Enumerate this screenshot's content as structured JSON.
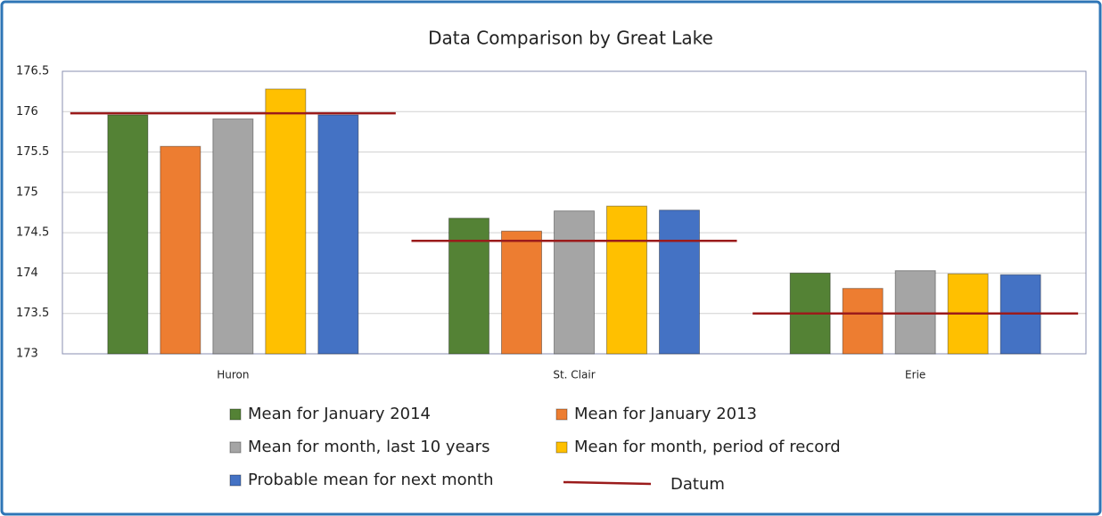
{
  "chart_data": {
    "type": "bar",
    "title": "Data Comparison by Great Lake",
    "categories": [
      "Huron",
      "St. Clair",
      "Erie"
    ],
    "series": [
      {
        "name": "Mean for January 2014",
        "color": "#548235",
        "values": [
          175.96,
          174.68,
          174.0
        ]
      },
      {
        "name": "Mean for January 2013",
        "color": "#ed7d31",
        "values": [
          175.57,
          174.52,
          173.81
        ]
      },
      {
        "name": "Mean for month, last 10 years",
        "color": "#a5a5a5",
        "values": [
          175.91,
          174.77,
          174.03
        ]
      },
      {
        "name": "Mean for month, period of record",
        "color": "#ffc000",
        "values": [
          176.28,
          174.83,
          173.99
        ]
      },
      {
        "name": "Probable mean for next month",
        "color": "#4472c4",
        "values": [
          175.96,
          174.78,
          173.98
        ]
      },
      {
        "name": "Datum",
        "color": "#9b1b1b",
        "type": "line",
        "values": [
          175.98,
          174.4,
          173.5
        ]
      }
    ],
    "ylim": [
      173,
      176.5
    ],
    "yticks": [
      173,
      173.5,
      174,
      174.5,
      175,
      175.5,
      176,
      176.5
    ],
    "grid": true
  }
}
